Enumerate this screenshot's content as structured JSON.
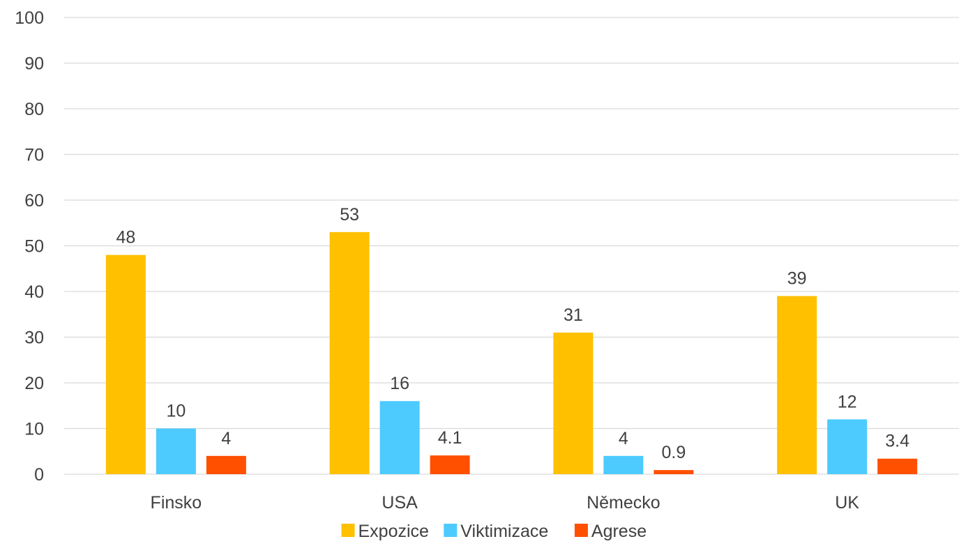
{
  "chart_data": {
    "type": "bar",
    "title": "",
    "xlabel": "",
    "ylabel": "",
    "ylim": [
      0,
      100
    ],
    "yticks": [
      0,
      10,
      20,
      30,
      40,
      50,
      60,
      70,
      80,
      90,
      100
    ],
    "grid": true,
    "legend_position": "bottom",
    "categories": [
      "Finsko",
      "USA",
      "Německo",
      "UK"
    ],
    "series": [
      {
        "name": "Expozice",
        "color": "#FFC000",
        "values": [
          48,
          53,
          31,
          39
        ],
        "labels": [
          "48",
          "53",
          "31",
          "39"
        ]
      },
      {
        "name": "Viktimizace",
        "color": "#4DCBFF",
        "values": [
          10,
          16,
          4,
          12
        ],
        "labels": [
          "10",
          "16",
          "4",
          "12"
        ]
      },
      {
        "name": "Agrese",
        "color": "#FF5000",
        "values": [
          4,
          4.1,
          0.9,
          3.4
        ],
        "labels": [
          "4",
          "4.1",
          "0.9",
          "3.4"
        ]
      }
    ]
  }
}
